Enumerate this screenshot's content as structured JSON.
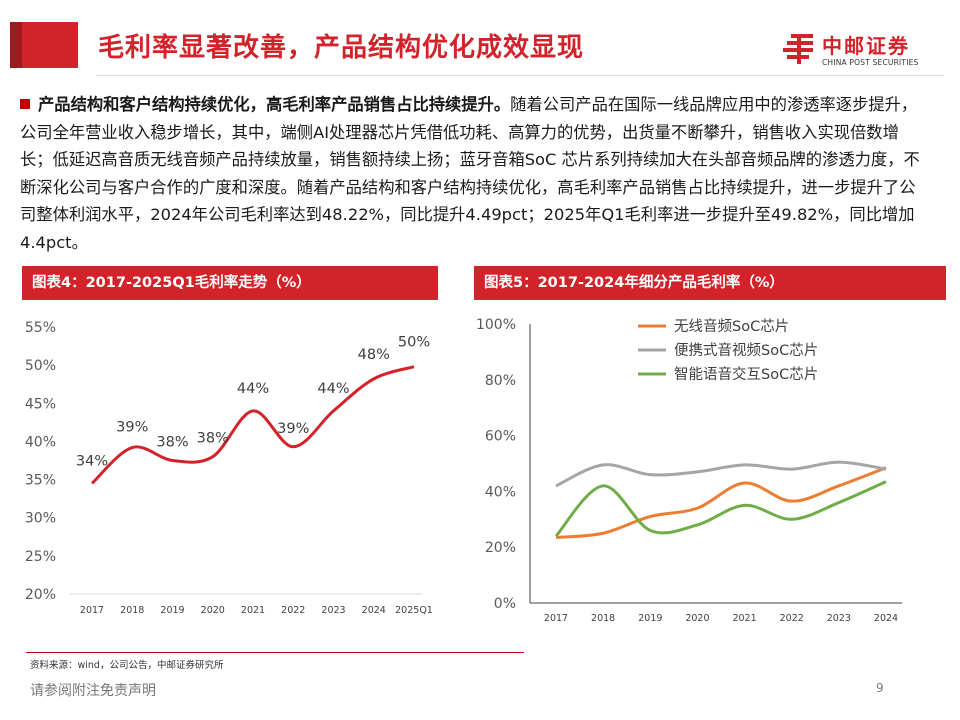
{
  "header": {
    "title": "毛利率显著改善，产品结构优化成效显现",
    "logo_cn": "中邮证券",
    "logo_en": "CHINA POST SECURITIES"
  },
  "body": {
    "lead": "产品结构和客户结构持续优化，高毛利率产品销售占比持续提升。",
    "text": "随着公司产品在国际一线品牌应用中的渗透率逐步提升，公司全年营业收入稳步增长，其中，端侧AI处理器芯片凭借低功耗、高算力的优势，出货量不断攀升，销售收入实现倍数增长；低延迟高音质无线音频产品持续放量，销售额持续上扬；蓝牙音箱SoC 芯片系列持续加大在头部音频品牌的渗透力度，不断深化公司与客户合作的广度和深度。随着产品结构和客户结构持续优化，高毛利率产品销售占比持续提升，进一步提升了公司整体利润水平，2024年公司毛利率达到48.22%，同比提升4.49pct；2025年Q1毛利率进一步提升至49.82%，同比增加4.4pct。"
  },
  "chart1_header": "图表4：2017-2025Q1毛利率走势（%）",
  "chart2_header": "图表5：2017-2024年细分产品毛利率（%）",
  "chart_data": [
    {
      "type": "line",
      "title": "图表4：2017-2025Q1毛利率走势（%）",
      "categories": [
        "2017",
        "2018",
        "2019",
        "2020",
        "2021",
        "2022",
        "2023",
        "2024",
        "2025Q1"
      ],
      "values": [
        34.5,
        39.2,
        37.5,
        38.0,
        44.0,
        39.3,
        44.0,
        48.2,
        49.8
      ],
      "data_labels": [
        "34%",
        "39%",
        "38%",
        "38%",
        "44%",
        "39%",
        "44%",
        "48%",
        "50%"
      ],
      "yticks": [
        "55%",
        "50%",
        "45%",
        "40%",
        "35%",
        "30%",
        "25%",
        "20%"
      ],
      "ylim": [
        20,
        55
      ],
      "color": "#d3232a",
      "smooth": true
    },
    {
      "type": "line",
      "title": "图表5：2017-2024年细分产品毛利率（%）",
      "categories": [
        "2017",
        "2018",
        "2019",
        "2020",
        "2021",
        "2022",
        "2023",
        "2024"
      ],
      "series": [
        {
          "name": "无线音频SoC芯片",
          "color": "#ed7d31",
          "values": [
            23.5,
            25,
            31,
            34,
            43,
            36.5,
            42,
            48.5
          ]
        },
        {
          "name": "便携式音视频SoC芯片",
          "color": "#a5a5a5",
          "values": [
            42,
            49.5,
            46,
            47,
            49.5,
            48,
            50.5,
            48
          ]
        },
        {
          "name": "智能语音交互SoC芯片",
          "color": "#70ad47",
          "values": [
            24,
            42,
            26,
            28,
            35,
            30,
            36,
            43.5
          ]
        }
      ],
      "yticks": [
        "100%",
        "80%",
        "60%",
        "40%",
        "20%",
        "0%"
      ],
      "ylim": [
        0,
        100
      ],
      "legend": "top-right",
      "smooth": true
    }
  ],
  "footer": {
    "source": "资料来源：wind，公司公告，中邮证券研究所",
    "note": "请参阅附注免责声明",
    "page": "9"
  }
}
